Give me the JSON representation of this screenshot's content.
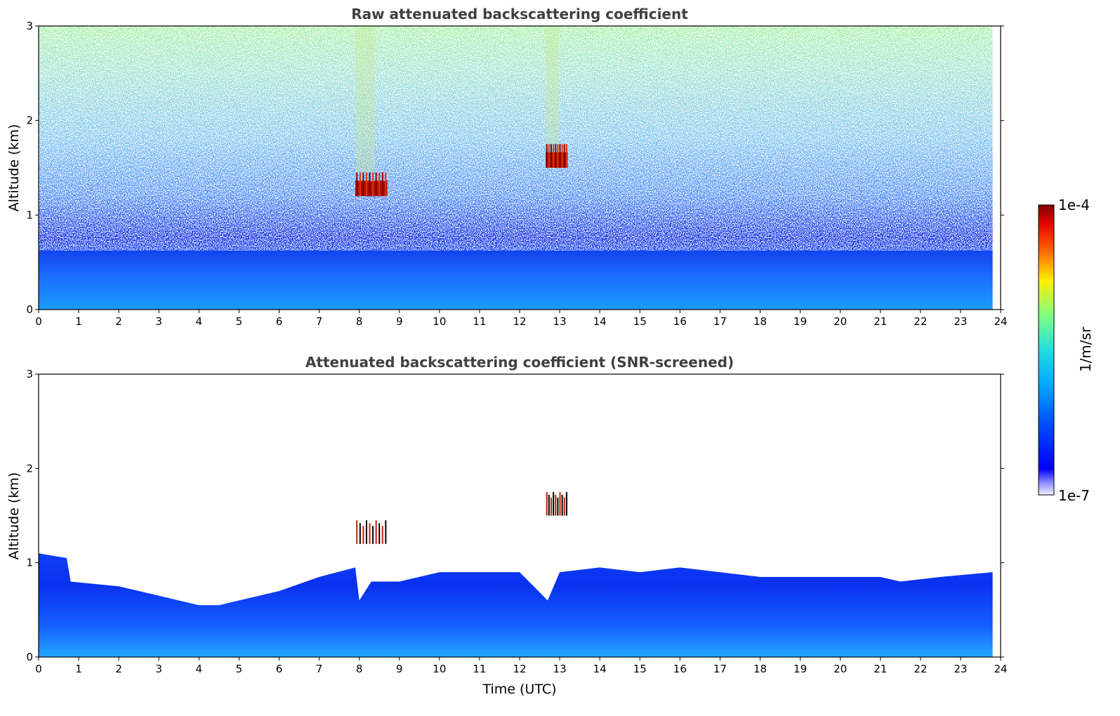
{
  "chart_data": [
    {
      "type": "heatmap",
      "title": "Raw attenuated backscattering coefficient",
      "xlabel": "",
      "ylabel": "Altitude (km)",
      "xlim": [
        0,
        24
      ],
      "ylim": [
        0,
        3
      ],
      "xticks": [
        "0",
        "1",
        "2",
        "3",
        "4",
        "5",
        "6",
        "7",
        "8",
        "9",
        "10",
        "11",
        "12",
        "13",
        "14",
        "15",
        "16",
        "17",
        "18",
        "19",
        "20",
        "21",
        "22",
        "23",
        "24"
      ],
      "yticks": [
        "0",
        "1",
        "2",
        "3"
      ],
      "data_end_hour": 23.8,
      "features": {
        "clouds": [
          {
            "t_start": 7.9,
            "t_end": 8.7,
            "alt_min_km": 1.2,
            "alt_max_km": 1.45
          },
          {
            "t_start": 12.65,
            "t_end": 13.2,
            "alt_min_km": 1.5,
            "alt_max_km": 1.75
          }
        ]
      }
    },
    {
      "type": "heatmap",
      "title": "Attenuated backscattering coefficient (SNR-screened)",
      "xlabel": "Time (UTC)",
      "ylabel": "Altitude (km)",
      "xlim": [
        0,
        24
      ],
      "ylim": [
        0,
        3
      ],
      "xticks": [
        "0",
        "1",
        "2",
        "3",
        "4",
        "5",
        "6",
        "7",
        "8",
        "9",
        "10",
        "11",
        "12",
        "13",
        "14",
        "15",
        "16",
        "17",
        "18",
        "19",
        "20",
        "21",
        "22",
        "23",
        "24"
      ],
      "yticks": [
        "0",
        "1",
        "2",
        "3"
      ],
      "data_end_hour": 23.8,
      "signal_top_km": [
        [
          0,
          1.1
        ],
        [
          0.7,
          1.05
        ],
        [
          0.8,
          0.8
        ],
        [
          2,
          0.75
        ],
        [
          3,
          0.65
        ],
        [
          4,
          0.55
        ],
        [
          4.5,
          0.55
        ],
        [
          5,
          0.6
        ],
        [
          6,
          0.7
        ],
        [
          7,
          0.85
        ],
        [
          7.9,
          0.95
        ],
        [
          8,
          0.6
        ],
        [
          8.3,
          0.8
        ],
        [
          9,
          0.8
        ],
        [
          10,
          0.9
        ],
        [
          11,
          0.9
        ],
        [
          12,
          0.9
        ],
        [
          12.7,
          0.6
        ],
        [
          13,
          0.9
        ],
        [
          14,
          0.95
        ],
        [
          15,
          0.9
        ],
        [
          16,
          0.95
        ],
        [
          17,
          0.9
        ],
        [
          18,
          0.85
        ],
        [
          19,
          0.85
        ],
        [
          20,
          0.85
        ],
        [
          21,
          0.85
        ],
        [
          21.5,
          0.8
        ],
        [
          22.5,
          0.85
        ],
        [
          23.8,
          0.9
        ]
      ]
    }
  ],
  "colorbar": {
    "label": "1/m/sr",
    "max_label": "1e-4",
    "min_label": "1e-7",
    "scale": "log",
    "colormap": "jet"
  }
}
